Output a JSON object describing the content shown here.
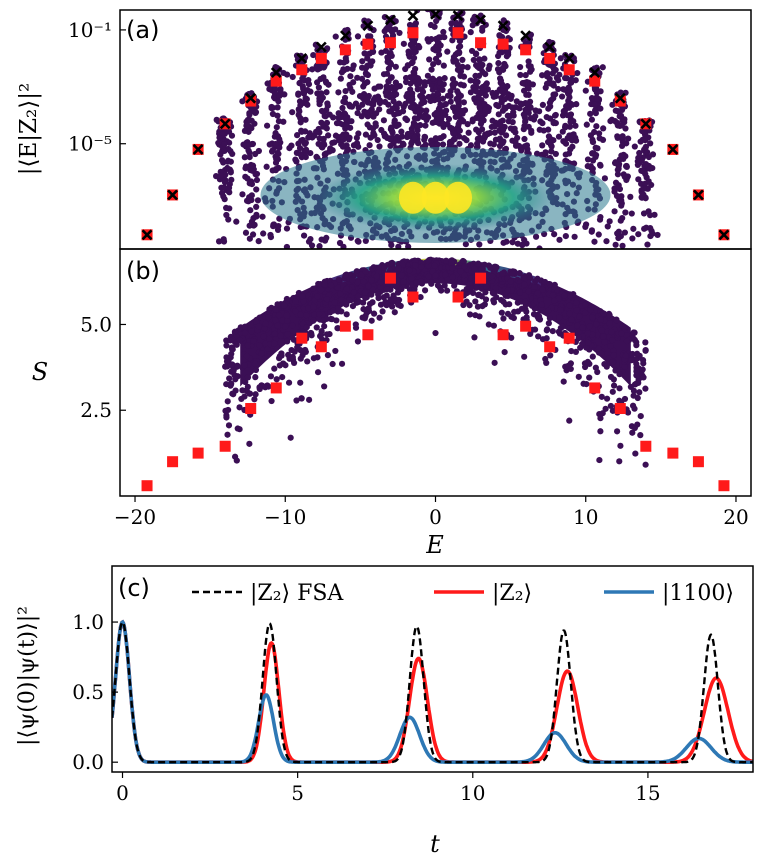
{
  "colors": {
    "red": "#ff1a1a",
    "black": "#000000",
    "blue": "#2e78b5",
    "cloud_low": "#3b0f55",
    "cloud_mid": "#2a788e",
    "cloud_high": "#fde725"
  },
  "chart_data": [
    {
      "panel": "a",
      "panel_label": "(a)",
      "type": "scatter",
      "ylabel": "|⟨E|Z₂⟩|²",
      "yscale": "log",
      "ylim_log10": [
        -8.7,
        -0.3
      ],
      "xlim": [
        -21,
        21
      ],
      "ytick_labels": [
        {
          "value_log10": -1,
          "text": "10⁻¹"
        },
        {
          "value_log10": -5,
          "text": "10⁻⁵"
        }
      ],
      "series": [
        {
          "name": "scar states (black x)",
          "marker": "x",
          "color": "#000000",
          "x": [
            -19.2,
            -17.5,
            -15.8,
            -14.0,
            -12.3,
            -10.6,
            -8.9,
            -7.6,
            -6.0,
            -4.5,
            -3.0,
            -1.5,
            0.0,
            1.5,
            3.0,
            4.5,
            6.0,
            7.6,
            8.9,
            10.6,
            12.3,
            14.0,
            15.8,
            17.5,
            19.2
          ],
          "log10_y": [
            -8.2,
            -6.8,
            -5.2,
            -4.3,
            -3.4,
            -2.5,
            -2.0,
            -1.6,
            -1.2,
            -0.85,
            -0.65,
            -0.5,
            -0.45,
            -0.5,
            -0.65,
            -0.85,
            -1.2,
            -1.6,
            -2.0,
            -2.5,
            -3.4,
            -4.3,
            -5.2,
            -6.8,
            -8.2
          ]
        },
        {
          "name": "FSA (red squares)",
          "marker": "square",
          "color": "#ff1a1a",
          "x": [
            -19.2,
            -17.5,
            -15.8,
            -14.0,
            -12.3,
            -10.6,
            -8.9,
            -7.6,
            -6.0,
            -4.5,
            -3.0,
            -1.5,
            1.5,
            3.0,
            4.5,
            6.0,
            7.6,
            8.9,
            10.6,
            12.3,
            14.0,
            15.8,
            17.5,
            19.2
          ],
          "log10_y": [
            -8.2,
            -6.8,
            -5.2,
            -4.3,
            -3.5,
            -2.8,
            -2.4,
            -2.0,
            -1.7,
            -1.5,
            -1.45,
            -1.1,
            -1.1,
            -1.45,
            -1.5,
            -1.7,
            -2.0,
            -2.4,
            -2.8,
            -3.5,
            -4.3,
            -5.2,
            -6.8,
            -8.2
          ]
        }
      ]
    },
    {
      "panel": "b",
      "panel_label": "(b)",
      "type": "scatter",
      "ylabel": "S",
      "xlabel": "E",
      "xlim": [
        -21,
        21
      ],
      "ylim": [
        0.0,
        7.2
      ],
      "xticks": [
        -20,
        -10,
        0,
        10,
        20
      ],
      "xtick_labels": [
        "−20",
        "−10",
        "0",
        "10",
        "20"
      ],
      "yticks": [
        2.5,
        5.0
      ],
      "ytick_labels": [
        "2.5",
        "5.0"
      ],
      "series": [
        {
          "name": "FSA (red squares)",
          "marker": "square",
          "color": "#ff1a1a",
          "x": [
            -19.2,
            -17.5,
            -15.8,
            -14.0,
            -12.3,
            -10.6,
            -8.9,
            -7.6,
            -6.0,
            -4.5,
            -3.0,
            -1.5,
            1.5,
            3.0,
            4.5,
            6.0,
            7.6,
            8.9,
            10.6,
            12.3,
            14.0,
            15.8,
            17.5,
            19.2
          ],
          "y": [
            0.3,
            1.0,
            1.25,
            1.45,
            2.55,
            3.15,
            4.6,
            4.35,
            4.95,
            4.7,
            6.35,
            5.8,
            5.8,
            6.35,
            4.7,
            4.95,
            4.35,
            4.6,
            3.15,
            2.55,
            1.45,
            1.25,
            1.0,
            0.3
          ]
        }
      ]
    },
    {
      "panel": "c",
      "panel_label": "(c)",
      "type": "line",
      "ylabel": "|⟨ψ(0)|ψ(t)⟩|²",
      "xlabel": "t",
      "xlim": [
        -0.3,
        18.0
      ],
      "ylim": [
        -0.07,
        1.4
      ],
      "xticks": [
        0,
        5,
        10,
        15
      ],
      "xtick_labels": [
        "0",
        "5",
        "10",
        "15"
      ],
      "yticks": [
        0.0,
        0.5,
        1.0
      ],
      "ytick_labels": [
        "0.0",
        "0.5",
        "1.0"
      ],
      "legend": [
        {
          "label": "|Z₂⟩ FSA",
          "style": "dashed",
          "color": "#000000"
        },
        {
          "label": "|Z₂⟩",
          "style": "solid",
          "color": "#ff1a1a"
        },
        {
          "label": "|1100⟩",
          "style": "solid",
          "color": "#2e78b5"
        }
      ],
      "series": [
        {
          "name": "|Z₂⟩ FSA",
          "revival_times": [
            0.0,
            4.2,
            8.4,
            12.6,
            16.8
          ],
          "revival_heights": [
            1.0,
            0.99,
            0.97,
            0.94,
            0.91
          ],
          "width": 0.28
        },
        {
          "name": "|Z₂⟩",
          "revival_times": [
            0.0,
            4.25,
            8.45,
            12.7,
            16.95
          ],
          "revival_heights": [
            1.0,
            0.85,
            0.74,
            0.65,
            0.6
          ],
          "width": [
            0.28,
            0.3,
            0.36,
            0.42,
            0.48
          ]
        },
        {
          "name": "|1100⟩",
          "revival_times": [
            0.0,
            4.1,
            8.2,
            12.35,
            16.45
          ],
          "revival_heights": [
            1.0,
            0.48,
            0.32,
            0.21,
            0.17
          ],
          "width": [
            0.28,
            0.3,
            0.4,
            0.45,
            0.5
          ]
        }
      ]
    }
  ]
}
